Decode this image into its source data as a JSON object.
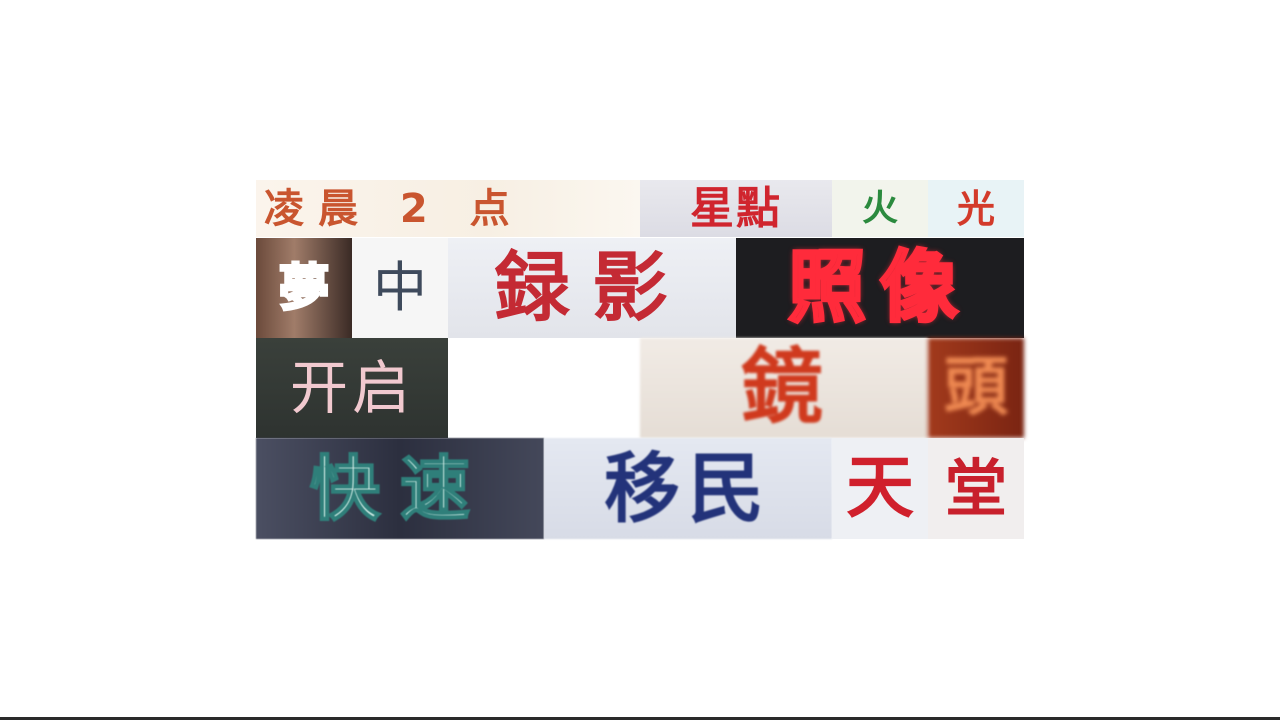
{
  "tiles": [
    {
      "id": "t1",
      "text": "凌晨 2 点"
    },
    {
      "id": "t2",
      "text": "星點"
    },
    {
      "id": "t3",
      "text": "火"
    },
    {
      "id": "t4",
      "text": "光"
    },
    {
      "id": "t5",
      "text": "夢"
    },
    {
      "id": "t6",
      "text": "中"
    },
    {
      "id": "t7",
      "text": "録影"
    },
    {
      "id": "t8",
      "text": "照像"
    },
    {
      "id": "t9",
      "text": "开启"
    },
    {
      "id": "t10",
      "text": "鏡"
    },
    {
      "id": "t11",
      "text": "頭"
    },
    {
      "id": "t12",
      "text": "快速"
    },
    {
      "id": "t13",
      "text": "移民"
    },
    {
      "id": "t14",
      "text": "天"
    },
    {
      "id": "t15",
      "text": "堂"
    }
  ]
}
